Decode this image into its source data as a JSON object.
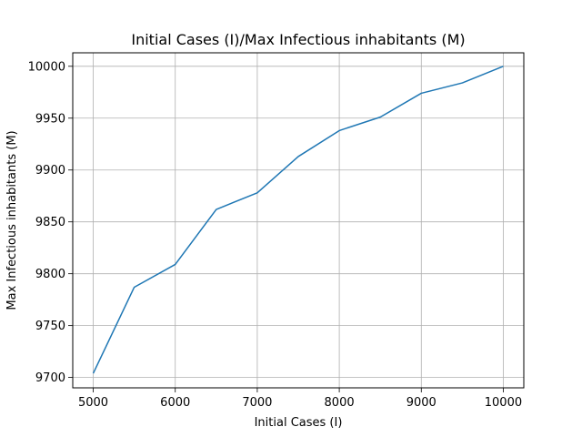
{
  "chart_data": {
    "type": "line",
    "title": "Initial Cases (I)/Max Infectious inhabitants (M)",
    "xlabel": "Initial Cases (I)",
    "ylabel": "Max Infectious inhabitants (M)",
    "x": [
      5000,
      5500,
      6000,
      6500,
      7000,
      7500,
      8000,
      8500,
      9000,
      9500,
      10000
    ],
    "series": [
      {
        "values": [
          9704,
          9787,
          9809,
          9862,
          9878,
          9913,
          9938,
          9951,
          9974,
          9984,
          10000
        ],
        "color": "#1f77b4"
      }
    ],
    "xlim": [
      4750,
      10250
    ],
    "ylim": [
      9690,
      10013
    ],
    "xticks": [
      5000,
      6000,
      7000,
      8000,
      9000,
      10000
    ],
    "yticks": [
      9700,
      9750,
      9800,
      9850,
      9900,
      9950,
      10000
    ],
    "grid": true,
    "grid_color": "#b0b0b0"
  }
}
